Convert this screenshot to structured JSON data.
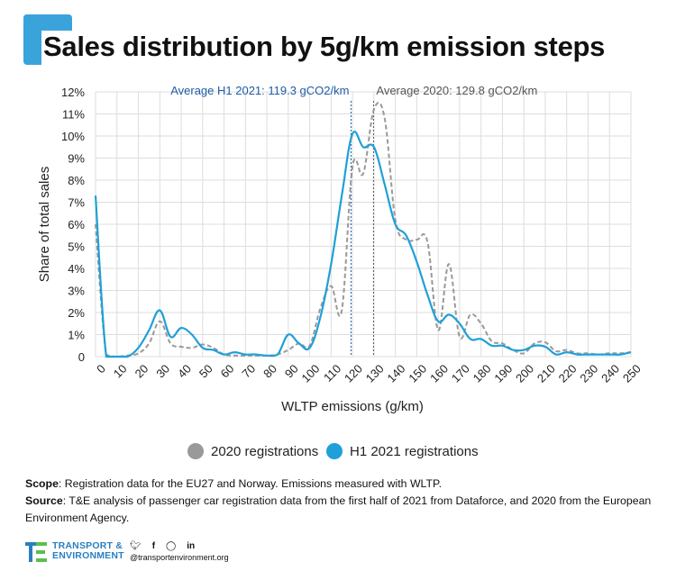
{
  "title": "Sales distribution by 5g/km emission steps",
  "colors": {
    "accent": "#3aa3dc",
    "h1_2021": "#1fa0d8",
    "y2020": "#999999",
    "avg_h1": "#1f5ca8",
    "avg_2020": "#555555"
  },
  "chart_data": {
    "type": "line",
    "ylabel": "Share of total sales",
    "xlabel": "WLTP emissions (g/km)",
    "ylim": [
      0,
      12
    ],
    "xlim": [
      0,
      250
    ],
    "y_ticks": [
      "0",
      "1%",
      "2%",
      "3%",
      "4%",
      "5%",
      "6%",
      "7%",
      "8%",
      "9%",
      "10%",
      "11%",
      "12%"
    ],
    "x_ticks": [
      "0",
      "10",
      "20",
      "30",
      "40",
      "50",
      "60",
      "70",
      "80",
      "90",
      "100",
      "110",
      "120",
      "130",
      "140",
      "150",
      "160",
      "170",
      "180",
      "190",
      "200",
      "210",
      "220",
      "230",
      "240",
      "250"
    ],
    "grid": true,
    "legend_position": "bottom",
    "annotations": [
      {
        "text": "Average H1 2021: 119.3 gCO2/km",
        "x": 119.3
      },
      {
        "text": "Average 2020: 129.8 gCO2/km",
        "x": 129.8
      }
    ],
    "series": [
      {
        "name": "2020 registrations",
        "style": "dashed",
        "points": [
          [
            0,
            6.0
          ],
          [
            5,
            0.1
          ],
          [
            10,
            0.0
          ],
          [
            15,
            0.05
          ],
          [
            20,
            0.15
          ],
          [
            25,
            0.6
          ],
          [
            30,
            1.6
          ],
          [
            35,
            0.6
          ],
          [
            40,
            0.45
          ],
          [
            45,
            0.4
          ],
          [
            50,
            0.55
          ],
          [
            55,
            0.4
          ],
          [
            60,
            0.1
          ],
          [
            65,
            0.05
          ],
          [
            70,
            0.05
          ],
          [
            75,
            0.05
          ],
          [
            80,
            0.05
          ],
          [
            85,
            0.1
          ],
          [
            90,
            0.3
          ],
          [
            95,
            0.6
          ],
          [
            100,
            0.5
          ],
          [
            105,
            2.2
          ],
          [
            110,
            3.2
          ],
          [
            115,
            2.1
          ],
          [
            120,
            8.6
          ],
          [
            125,
            8.3
          ],
          [
            130,
            11.2
          ],
          [
            135,
            10.8
          ],
          [
            140,
            6.2
          ],
          [
            145,
            5.3
          ],
          [
            150,
            5.3
          ],
          [
            155,
            5.2
          ],
          [
            160,
            1.2
          ],
          [
            165,
            4.2
          ],
          [
            170,
            0.9
          ],
          [
            175,
            1.9
          ],
          [
            180,
            1.5
          ],
          [
            185,
            0.7
          ],
          [
            190,
            0.6
          ],
          [
            195,
            0.3
          ],
          [
            200,
            0.15
          ],
          [
            205,
            0.6
          ],
          [
            210,
            0.65
          ],
          [
            215,
            0.25
          ],
          [
            220,
            0.3
          ],
          [
            225,
            0.15
          ],
          [
            230,
            0.15
          ],
          [
            235,
            0.1
          ],
          [
            240,
            0.15
          ],
          [
            245,
            0.15
          ],
          [
            250,
            0.2
          ]
        ]
      },
      {
        "name": "H1 2021 registrations",
        "style": "solid",
        "points": [
          [
            0,
            7.3
          ],
          [
            5,
            0.0
          ],
          [
            10,
            0.0
          ],
          [
            15,
            0.0
          ],
          [
            20,
            0.4
          ],
          [
            25,
            1.2
          ],
          [
            30,
            2.1
          ],
          [
            35,
            0.9
          ],
          [
            40,
            1.3
          ],
          [
            45,
            1.0
          ],
          [
            50,
            0.4
          ],
          [
            55,
            0.3
          ],
          [
            60,
            0.1
          ],
          [
            65,
            0.2
          ],
          [
            70,
            0.1
          ],
          [
            75,
            0.1
          ],
          [
            80,
            0.05
          ],
          [
            85,
            0.1
          ],
          [
            90,
            1.0
          ],
          [
            95,
            0.6
          ],
          [
            100,
            0.4
          ],
          [
            105,
            1.8
          ],
          [
            110,
            4.2
          ],
          [
            115,
            7.3
          ],
          [
            120,
            10.1
          ],
          [
            125,
            9.5
          ],
          [
            130,
            9.5
          ],
          [
            135,
            7.8
          ],
          [
            140,
            6.0
          ],
          [
            145,
            5.5
          ],
          [
            150,
            4.3
          ],
          [
            155,
            2.8
          ],
          [
            160,
            1.6
          ],
          [
            165,
            1.9
          ],
          [
            170,
            1.5
          ],
          [
            175,
            0.8
          ],
          [
            180,
            0.8
          ],
          [
            185,
            0.5
          ],
          [
            190,
            0.5
          ],
          [
            195,
            0.3
          ],
          [
            200,
            0.3
          ],
          [
            205,
            0.5
          ],
          [
            210,
            0.45
          ],
          [
            215,
            0.1
          ],
          [
            220,
            0.2
          ],
          [
            225,
            0.1
          ],
          [
            230,
            0.1
          ],
          [
            235,
            0.1
          ],
          [
            240,
            0.1
          ],
          [
            245,
            0.1
          ],
          [
            250,
            0.2
          ]
        ]
      }
    ]
  },
  "legend": {
    "y2020": "2020 registrations",
    "h1_2021": "H1 2021 registrations"
  },
  "notes": {
    "scope_label": "Scope",
    "scope_text": ": Registration data for the EU27 and Norway. Emissions measured with WLTP.",
    "source_label": "Source",
    "source_text": ": T&E analysis of passenger car registration data from the first half of 2021 from Dataforce, and 2020 from the European Environment Agency."
  },
  "footer": {
    "logo_line1": "TRANSPORT &",
    "logo_line2": "ENVIRONMENT",
    "social_icons": [
      "twitter-icon",
      "facebook-icon",
      "instagram-icon",
      "linkedin-icon"
    ],
    "handle": "@transportenvironment.org"
  }
}
